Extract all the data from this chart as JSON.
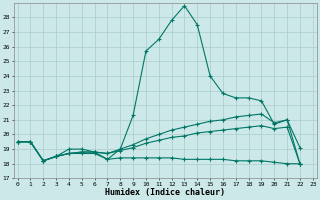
{
  "xlabel": "Humidex (Indice chaleur)",
  "bg_color": "#cce8e8",
  "grid_color": "#aacccc",
  "line_color": "#007766",
  "lines": [
    {
      "x": [
        0,
        1,
        2,
        3,
        4,
        5,
        6,
        7,
        8,
        9,
        10,
        11,
        12,
        13,
        14,
        15,
        16,
        17,
        18,
        19,
        20,
        21,
        22
      ],
      "y": [
        19.5,
        19.5,
        18.2,
        18.5,
        19.0,
        19.0,
        18.8,
        18.3,
        19.0,
        21.3,
        25.7,
        26.5,
        27.8,
        28.8,
        27.5,
        24.0,
        22.8,
        22.5,
        22.5,
        22.3,
        20.7,
        21.0,
        19.1
      ]
    },
    {
      "x": [
        0,
        1,
        2,
        3,
        4,
        5,
        6,
        7,
        8,
        9,
        10,
        11,
        12,
        13,
        14,
        15,
        16,
        17,
        18,
        19,
        20,
        21,
        22
      ],
      "y": [
        19.5,
        19.5,
        18.2,
        18.5,
        18.7,
        18.8,
        18.8,
        18.7,
        19.0,
        19.3,
        19.7,
        20.0,
        20.3,
        20.5,
        20.7,
        20.9,
        21.0,
        21.2,
        21.3,
        21.4,
        20.8,
        21.0,
        18.0
      ]
    },
    {
      "x": [
        0,
        1,
        2,
        3,
        4,
        5,
        6,
        7,
        8,
        9,
        10,
        11,
        12,
        13,
        14,
        15,
        16,
        17,
        18,
        19,
        20,
        21,
        22
      ],
      "y": [
        19.5,
        19.5,
        18.2,
        18.5,
        18.7,
        18.8,
        18.8,
        18.7,
        18.9,
        19.1,
        19.4,
        19.6,
        19.8,
        19.9,
        20.1,
        20.2,
        20.3,
        20.4,
        20.5,
        20.6,
        20.4,
        20.5,
        18.0
      ]
    },
    {
      "x": [
        0,
        1,
        2,
        3,
        4,
        5,
        6,
        7,
        8,
        9,
        10,
        11,
        12,
        13,
        14,
        15,
        16,
        17,
        18,
        19,
        20,
        21,
        22
      ],
      "y": [
        19.5,
        19.5,
        18.2,
        18.5,
        18.7,
        18.7,
        18.7,
        18.3,
        18.4,
        18.4,
        18.4,
        18.4,
        18.4,
        18.3,
        18.3,
        18.3,
        18.3,
        18.2,
        18.2,
        18.2,
        18.1,
        18.0,
        18.0
      ]
    }
  ],
  "xlim": [
    -0.3,
    23.3
  ],
  "ylim": [
    17,
    29
  ],
  "yticks": [
    17,
    18,
    19,
    20,
    21,
    22,
    23,
    24,
    25,
    26,
    27,
    28
  ],
  "xticks": [
    0,
    1,
    2,
    3,
    4,
    5,
    6,
    7,
    8,
    9,
    10,
    11,
    12,
    13,
    14,
    15,
    16,
    17,
    18,
    19,
    20,
    21,
    22,
    23
  ]
}
